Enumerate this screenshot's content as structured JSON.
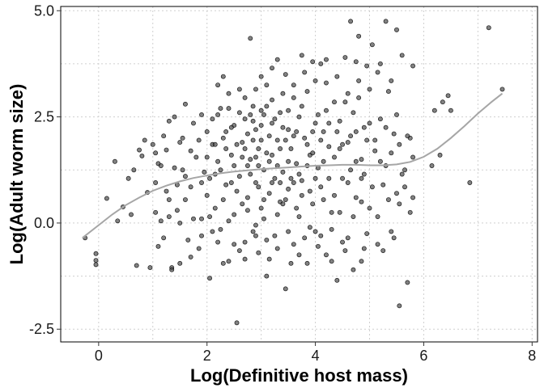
{
  "chart_data": {
    "type": "scatter",
    "title": "",
    "xlabel": "Log(Definitive host mass)",
    "ylabel": "Log(Adult worm size)",
    "xlim": [
      -0.7,
      8.1
    ],
    "ylim": [
      -2.8,
      5.1
    ],
    "x_ticks": [
      0,
      2,
      4,
      6,
      8
    ],
    "x_tick_labels": [
      "0",
      "2",
      "4",
      "6",
      "8"
    ],
    "y_ticks": [
      -2.5,
      0,
      2.5,
      5
    ],
    "y_tick_labels": [
      "-2.5",
      "0.0",
      "2.5",
      "5.0"
    ],
    "grid": "dotted",
    "legend": "none",
    "point_color": "#4d4d4d",
    "point_edge_color": "#000000",
    "point_opacity": 0.7,
    "smooth_color": "#a6a6a6",
    "points": [
      [
        -0.25,
        -0.35
      ],
      [
        -0.05,
        -0.72
      ],
      [
        -0.05,
        -0.98
      ],
      [
        -0.05,
        -0.88
      ],
      [
        0.15,
        0.58
      ],
      [
        0.3,
        1.45
      ],
      [
        0.45,
        0.38
      ],
      [
        0.55,
        1.05
      ],
      [
        0.6,
        0.2
      ],
      [
        0.7,
        -1.0
      ],
      [
        0.75,
        1.72
      ],
      [
        0.8,
        1.58
      ],
      [
        0.85,
        1.95
      ],
      [
        0.9,
        0.72
      ],
      [
        0.95,
        -1.05
      ],
      [
        1.0,
        1.85
      ],
      [
        1.05,
        1.65
      ],
      [
        1.05,
        0.95
      ],
      [
        1.1,
        1.4
      ],
      [
        1.15,
        0.05
      ],
      [
        1.2,
        2.05
      ],
      [
        1.2,
        -0.35
      ],
      [
        1.25,
        1.72
      ],
      [
        1.3,
        2.4
      ],
      [
        1.3,
        0.55
      ],
      [
        1.35,
        -1.05
      ],
      [
        1.35,
        -1.1
      ],
      [
        1.4,
        2.5
      ],
      [
        1.4,
        1.3
      ],
      [
        1.45,
        0.3
      ],
      [
        1.5,
        1.9
      ],
      [
        1.5,
        -0.95
      ],
      [
        1.55,
        2.0
      ],
      [
        1.6,
        2.8
      ],
      [
        1.6,
        1.1
      ],
      [
        1.65,
        -0.4
      ],
      [
        1.7,
        1.7
      ],
      [
        1.7,
        0.85
      ],
      [
        1.75,
        2.35
      ],
      [
        1.8,
        1.55
      ],
      [
        1.85,
        -0.6
      ],
      [
        1.9,
        2.55
      ],
      [
        1.9,
        0.1
      ],
      [
        1.95,
        1.2
      ],
      [
        2.0,
        2.15
      ],
      [
        2.0,
        0.65
      ],
      [
        2.05,
        -1.3
      ],
      [
        2.1,
        1.85
      ],
      [
        2.15,
        0.35
      ],
      [
        2.2,
        2.55
      ],
      [
        2.2,
        1.45
      ],
      [
        2.25,
        -0.15
      ],
      [
        2.3,
        3.45
      ],
      [
        2.3,
        2.0
      ],
      [
        2.35,
        0.9
      ],
      [
        2.4,
        2.7
      ],
      [
        2.4,
        -0.9
      ],
      [
        2.45,
        1.6
      ],
      [
        2.5,
        2.3
      ],
      [
        2.5,
        0.2
      ],
      [
        2.55,
        -2.35
      ],
      [
        2.6,
        2.6
      ],
      [
        2.6,
        1.1
      ],
      [
        2.65,
        1.9
      ],
      [
        2.7,
        -0.45
      ],
      [
        2.7,
        2.95
      ],
      [
        2.75,
        0.6
      ],
      [
        2.75,
        2.1
      ],
      [
        2.8,
        4.35
      ],
      [
        2.8,
        1.5
      ],
      [
        2.85,
        -0.2
      ],
      [
        2.85,
        2.4
      ],
      [
        2.9,
        0.95
      ],
      [
        2.9,
        2.2
      ],
      [
        2.95,
        1.75
      ],
      [
        2.95,
        -0.7
      ],
      [
        3.0,
        2.3
      ],
      [
        3.0,
        0.35
      ],
      [
        3.05,
        2.55
      ],
      [
        3.05,
        1.25
      ],
      [
        3.1,
        3.25
      ],
      [
        3.1,
        -1.25
      ],
      [
        3.15,
        2.05
      ],
      [
        3.15,
        0.7
      ],
      [
        3.2,
        1.6
      ],
      [
        3.2,
        2.9
      ],
      [
        3.25,
        -0.3
      ],
      [
        3.3,
        3.85
      ],
      [
        3.3,
        1.95
      ],
      [
        3.35,
        0.5
      ],
      [
        3.35,
        2.6
      ],
      [
        3.4,
        1.2
      ],
      [
        3.45,
        -1.55
      ],
      [
        3.45,
        3.5
      ],
      [
        3.5,
        2.2
      ],
      [
        3.5,
        0.8
      ],
      [
        3.55,
        1.75
      ],
      [
        3.6,
        -0.5
      ],
      [
        3.6,
        2.95
      ],
      [
        3.65,
        1.4
      ],
      [
        3.7,
        0.15
      ],
      [
        3.7,
        2.5
      ],
      [
        3.75,
        3.95
      ],
      [
        3.75,
        1.0
      ],
      [
        3.8,
        2.0
      ],
      [
        3.85,
        -0.95
      ],
      [
        3.85,
        3.1
      ],
      [
        3.9,
        1.6
      ],
      [
        3.95,
        3.8
      ],
      [
        3.95,
        0.45
      ],
      [
        4.0,
        2.35
      ],
      [
        4.0,
        -0.2
      ],
      [
        4.05,
        1.3
      ],
      [
        4.1,
        3.75
      ],
      [
        4.1,
        0.85
      ],
      [
        4.15,
        2.15
      ],
      [
        4.2,
        -0.75
      ],
      [
        4.2,
        3.3
      ],
      [
        4.25,
        1.8
      ],
      [
        4.3,
        0.25
      ],
      [
        4.35,
        2.85
      ],
      [
        4.4,
        -1.35
      ],
      [
        4.45,
        2.4
      ],
      [
        4.5,
        1.05
      ],
      [
        4.55,
        3.9
      ],
      [
        4.6,
        1.9
      ],
      [
        4.6,
        -0.35
      ],
      [
        4.65,
        4.75
      ],
      [
        4.7,
        2.6
      ],
      [
        4.75,
        0.6
      ],
      [
        4.75,
        3.8
      ],
      [
        4.8,
        4.4
      ],
      [
        4.85,
        1.5
      ],
      [
        4.85,
        -0.9
      ],
      [
        4.9,
        2.25
      ],
      [
        4.95,
        3.7
      ],
      [
        5.0,
        0.35
      ],
      [
        5.05,
        4.2
      ],
      [
        5.1,
        1.7
      ],
      [
        5.15,
        -0.5
      ],
      [
        5.15,
        3.55
      ],
      [
        5.2,
        2.45
      ],
      [
        5.25,
        0.9
      ],
      [
        5.3,
        4.75
      ],
      [
        5.3,
        1.35
      ],
      [
        5.35,
        3.1
      ],
      [
        5.4,
        -0.2
      ],
      [
        5.45,
        2.1
      ],
      [
        5.5,
        4.55
      ],
      [
        5.5,
        0.7
      ],
      [
        5.55,
        1.85
      ],
      [
        5.55,
        -1.95
      ],
      [
        5.6,
        3.95
      ],
      [
        5.65,
        1.25
      ],
      [
        5.7,
        -1.4
      ],
      [
        5.75,
        2.0
      ],
      [
        5.8,
        0.6
      ],
      [
        5.8,
        3.7
      ],
      [
        6.15,
        1.35
      ],
      [
        6.2,
        2.65
      ],
      [
        6.3,
        1.6
      ],
      [
        6.35,
        2.85
      ],
      [
        6.45,
        3.0
      ],
      [
        6.5,
        2.65
      ],
      [
        6.85,
        0.95
      ],
      [
        7.2,
        4.6
      ],
      [
        7.45,
        3.15
      ],
      [
        0.35,
        0.05
      ],
      [
        0.65,
        1.25
      ],
      [
        1.05,
        0.25
      ],
      [
        1.15,
        1.35
      ],
      [
        1.25,
        0.75
      ],
      [
        1.45,
        0.9
      ],
      [
        1.55,
        1.25
      ],
      [
        1.6,
        0.55
      ],
      [
        1.75,
        0.1
      ],
      [
        1.85,
        1.95
      ],
      [
        1.9,
        0.95
      ],
      [
        2.0,
        1.55
      ],
      [
        2.05,
        0.15
      ],
      [
        2.1,
        2.45
      ],
      [
        2.15,
        1.15
      ],
      [
        2.2,
        -0.45
      ],
      [
        2.25,
        2.7
      ],
      [
        2.3,
        0.55
      ],
      [
        2.35,
        1.75
      ],
      [
        2.4,
        0.05
      ],
      [
        2.45,
        2.25
      ],
      [
        2.5,
        1.35
      ],
      [
        2.55,
        0.75
      ],
      [
        2.6,
        -0.65
      ],
      [
        2.65,
        1.55
      ],
      [
        2.7,
        2.45
      ],
      [
        2.75,
        0.3
      ],
      [
        2.8,
        1.15
      ],
      [
        2.85,
        2.75
      ],
      [
        2.9,
        -0.05
      ],
      [
        2.95,
        1.35
      ],
      [
        3.0,
        2.65
      ],
      [
        3.05,
        0.1
      ],
      [
        3.1,
        1.65
      ],
      [
        3.15,
        -0.85
      ],
      [
        3.2,
        2.35
      ],
      [
        3.25,
        1.05
      ],
      [
        3.3,
        0.2
      ],
      [
        3.35,
        1.75
      ],
      [
        3.4,
        2.25
      ],
      [
        3.45,
        0.55
      ],
      [
        3.5,
        1.45
      ],
      [
        3.55,
        -0.95
      ],
      [
        3.6,
        2.05
      ],
      [
        3.65,
        0.35
      ],
      [
        3.7,
        1.15
      ],
      [
        3.75,
        2.75
      ],
      [
        3.8,
        -0.35
      ],
      [
        3.85,
        1.85
      ],
      [
        3.9,
        0.75
      ],
      [
        3.95,
        2.15
      ],
      [
        4.0,
        1.05
      ],
      [
        4.05,
        -0.55
      ],
      [
        4.1,
        1.95
      ],
      [
        4.15,
        0.55
      ],
      [
        4.2,
        2.65
      ],
      [
        4.25,
        1.05
      ],
      [
        4.3,
        -0.15
      ],
      [
        4.35,
        1.55
      ],
      [
        4.4,
        2.15
      ],
      [
        4.45,
        0.25
      ],
      [
        4.5,
        1.85
      ],
      [
        4.55,
        -0.65
      ],
      [
        4.6,
        0.95
      ],
      [
        4.65,
        2.05
      ],
      [
        4.7,
        0.15
      ],
      [
        4.75,
        1.45
      ],
      [
        4.8,
        2.95
      ],
      [
        4.85,
        0.5
      ],
      [
        4.9,
        1.15
      ],
      [
        4.95,
        -0.25
      ],
      [
        5.0,
        2.35
      ],
      [
        5.05,
        0.85
      ],
      [
        5.1,
        1.95
      ],
      [
        5.15,
        0.15
      ],
      [
        5.2,
        1.45
      ],
      [
        5.25,
        -0.65
      ],
      [
        5.3,
        2.25
      ],
      [
        5.35,
        0.55
      ],
      [
        5.4,
        1.65
      ],
      [
        5.45,
        -0.35
      ],
      [
        5.5,
        2.55
      ],
      [
        5.55,
        0.45
      ],
      [
        5.6,
        1.15
      ],
      [
        5.65,
        0.85
      ],
      [
        5.7,
        2.05
      ],
      [
        5.75,
        0.25
      ],
      [
        5.8,
        1.55
      ],
      [
        2.9,
        3.15
      ],
      [
        3.0,
        3.45
      ],
      [
        3.2,
        3.65
      ],
      [
        3.4,
        3.05
      ],
      [
        3.6,
        3.25
      ],
      [
        3.8,
        3.55
      ],
      [
        4.0,
        3.35
      ],
      [
        4.2,
        3.85
      ],
      [
        4.4,
        3.45
      ],
      [
        4.6,
        3.05
      ],
      [
        4.8,
        3.35
      ],
      [
        5.0,
        3.15
      ],
      [
        5.2,
        3.75
      ],
      [
        5.4,
        3.35
      ],
      [
        2.6,
        3.15
      ],
      [
        2.4,
        3.05
      ],
      [
        2.2,
        3.25
      ],
      [
        3.1,
        -0.4
      ],
      [
        3.3,
        -0.6
      ],
      [
        3.5,
        -0.2
      ],
      [
        3.7,
        -0.75
      ],
      [
        3.9,
        -0.1
      ],
      [
        4.1,
        -0.3
      ],
      [
        4.3,
        -0.9
      ],
      [
        4.5,
        -0.45
      ],
      [
        4.7,
        -1.1
      ],
      [
        4.9,
        -0.6
      ],
      [
        2.9,
        -0.3
      ],
      [
        2.7,
        -0.85
      ],
      [
        2.5,
        -0.5
      ],
      [
        2.3,
        -0.95
      ],
      [
        2.1,
        -0.2
      ],
      [
        1.9,
        -0.3
      ],
      [
        1.7,
        -0.8
      ],
      [
        1.5,
        0.0
      ],
      [
        1.3,
        0.15
      ],
      [
        1.1,
        -0.55
      ],
      [
        3.05,
        0.55
      ],
      [
        3.15,
        1.45
      ],
      [
        3.25,
        2.45
      ],
      [
        3.35,
        0.95
      ],
      [
        3.45,
        1.95
      ],
      [
        3.55,
        1.05
      ],
      [
        3.65,
        2.15
      ],
      [
        3.75,
        0.65
      ],
      [
        3.85,
        1.35
      ],
      [
        3.95,
        1.65
      ],
      [
        2.95,
        0.85
      ],
      [
        2.85,
        1.95
      ],
      [
        2.75,
        1.35
      ],
      [
        2.65,
        0.45
      ],
      [
        2.55,
        1.85
      ],
      [
        2.45,
        0.95
      ],
      [
        2.35,
        2.15
      ],
      [
        2.25,
        1.25
      ],
      [
        2.15,
        1.85
      ],
      [
        2.05,
        1.05
      ],
      [
        4.05,
        2.55
      ],
      [
        4.15,
        1.45
      ],
      [
        4.25,
        2.35
      ],
      [
        4.35,
        0.65
      ],
      [
        4.45,
        1.75
      ],
      [
        4.55,
        2.85
      ],
      [
        4.65,
        1.25
      ],
      [
        4.75,
        2.15
      ],
      [
        4.85,
        1.05
      ],
      [
        4.95,
        1.95
      ],
      [
        3.1,
        2.75
      ],
      [
        3.0,
        1.95
      ],
      [
        2.9,
        1.55
      ],
      [
        2.8,
        2.55
      ],
      [
        2.7,
        1.75
      ],
      [
        3.2,
        0.95
      ],
      [
        3.3,
        1.35
      ],
      [
        3.4,
        0.45
      ],
      [
        3.5,
        2.65
      ],
      [
        3.6,
        0.95
      ]
    ],
    "smooth_curve": [
      [
        -0.3,
        -0.35
      ],
      [
        0.0,
        -0.05
      ],
      [
        0.25,
        0.2
      ],
      [
        0.5,
        0.42
      ],
      [
        0.75,
        0.6
      ],
      [
        1.0,
        0.76
      ],
      [
        1.25,
        0.88
      ],
      [
        1.5,
        0.98
      ],
      [
        1.75,
        1.06
      ],
      [
        2.0,
        1.12
      ],
      [
        2.25,
        1.17
      ],
      [
        2.5,
        1.21
      ],
      [
        2.75,
        1.24
      ],
      [
        3.0,
        1.27
      ],
      [
        3.25,
        1.29
      ],
      [
        3.5,
        1.31
      ],
      [
        3.75,
        1.33
      ],
      [
        4.0,
        1.35
      ],
      [
        4.25,
        1.36
      ],
      [
        4.5,
        1.37
      ],
      [
        4.75,
        1.37
      ],
      [
        5.0,
        1.36
      ],
      [
        5.25,
        1.36
      ],
      [
        5.5,
        1.38
      ],
      [
        5.75,
        1.44
      ],
      [
        6.0,
        1.56
      ],
      [
        6.25,
        1.75
      ],
      [
        6.5,
        2.0
      ],
      [
        6.75,
        2.28
      ],
      [
        7.0,
        2.58
      ],
      [
        7.25,
        2.85
      ],
      [
        7.45,
        3.05
      ]
    ]
  }
}
